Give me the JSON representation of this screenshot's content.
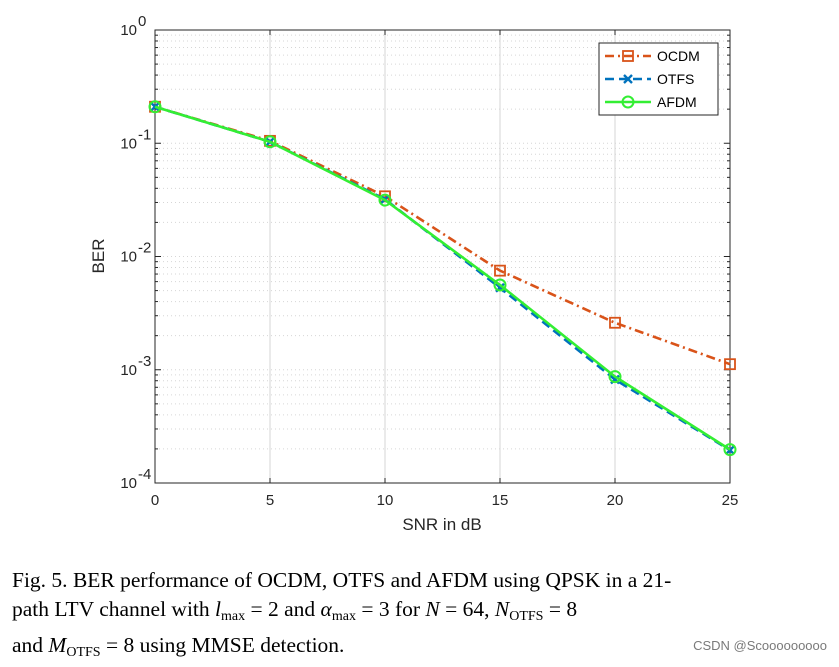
{
  "chart_data": {
    "type": "line",
    "xlabel": "SNR in dB",
    "ylabel": "BER",
    "yscale": "log",
    "xlim": [
      0,
      25
    ],
    "ylim": [
      0.0001,
      1
    ],
    "x": [
      0,
      5,
      10,
      15,
      20,
      25
    ],
    "x_ticks": [
      "0",
      "5",
      "10",
      "15",
      "20",
      "25"
    ],
    "y_ticks": [
      {
        "value": 1,
        "base": "10",
        "exp": "0"
      },
      {
        "value": 0.1,
        "base": "10",
        "exp": "-1"
      },
      {
        "value": 0.01,
        "base": "10",
        "exp": "-2"
      },
      {
        "value": 0.001,
        "base": "10",
        "exp": "-3"
      },
      {
        "value": 0.0001,
        "base": "10",
        "exp": "-4"
      }
    ],
    "grid": true,
    "legend_position": "top-right",
    "series": [
      {
        "name": "OCDM",
        "color": "#d95319",
        "line_style": "dash-dot",
        "marker": "square",
        "values": [
          0.21,
          0.105,
          0.034,
          0.0075,
          0.0026,
          0.00112
        ]
      },
      {
        "name": "OTFS",
        "color": "#0072bd",
        "line_style": "dashed",
        "marker": "x",
        "values": [
          0.21,
          0.103,
          0.032,
          0.0053,
          0.00082,
          0.000195
        ]
      },
      {
        "name": "AFDM",
        "color": "#33ee33",
        "line_style": "solid",
        "marker": "circle",
        "values": [
          0.21,
          0.103,
          0.0315,
          0.0056,
          0.00087,
          0.000197
        ]
      }
    ]
  },
  "caption": {
    "label": "Fig. 5.",
    "line1": "BER performance of OCDM, OTFS and AFDM using QPSK in a 21-",
    "line2_a": "path LTV channel with ",
    "l": "l",
    "max_sub": "max",
    "eq1": " = 2 and ",
    "alpha": "α",
    "eq2": " = 3 for ",
    "N": "N",
    "eq3": " = 64, ",
    "N2": "N",
    "otfs_sub": "OTFS",
    "eq4": " = 8",
    "line3_a": "and ",
    "M": "M",
    "otfs_sub2": "OTFS",
    "eq5": " = 8 using MMSE detection."
  },
  "watermark": "CSDN @Scooooooooo"
}
